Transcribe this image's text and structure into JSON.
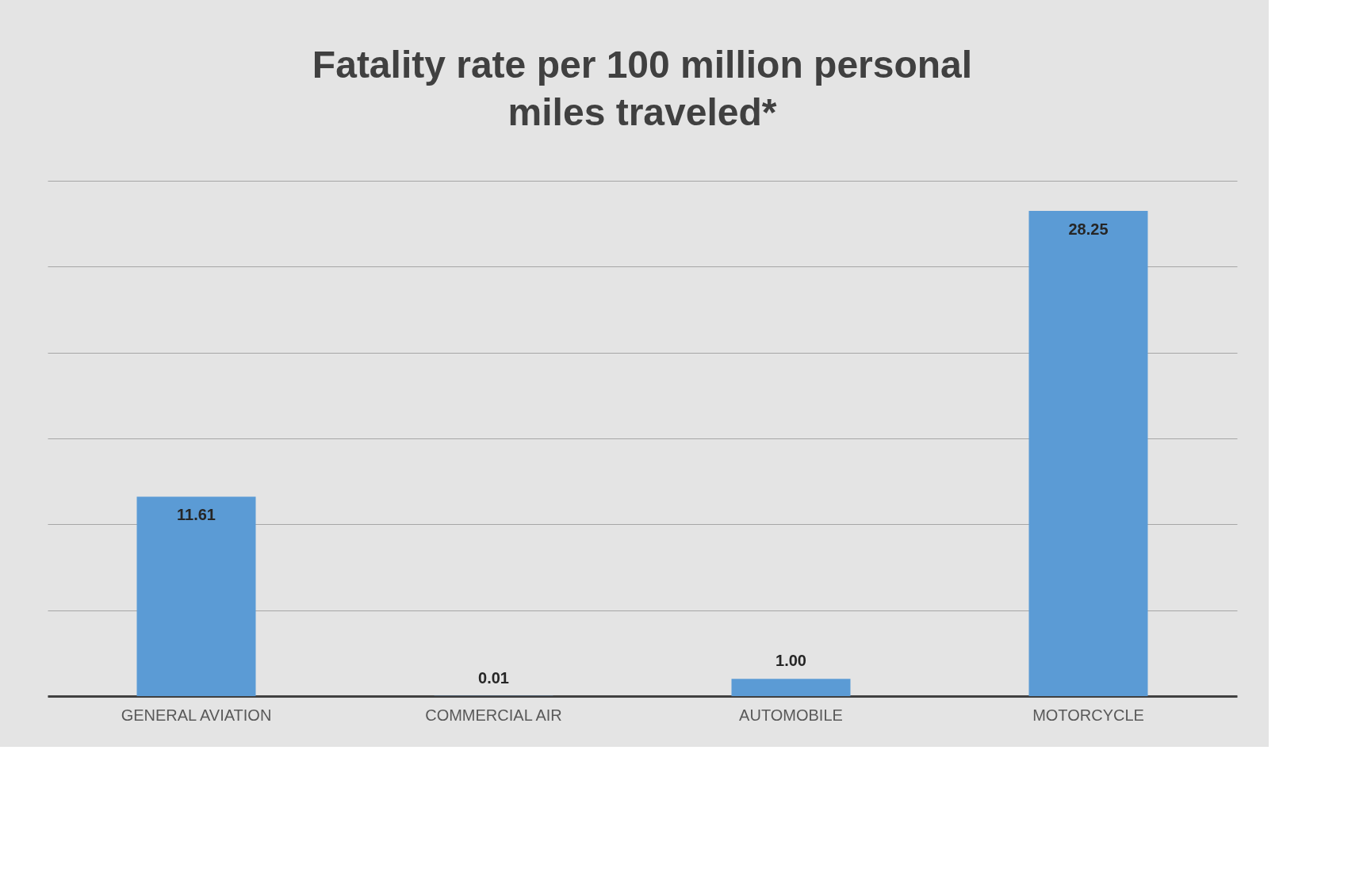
{
  "chart_data": {
    "type": "bar",
    "title": "Fatality rate per 100 million personal miles traveled*",
    "categories": [
      "GENERAL AVIATION",
      "COMMERCIAL AIR",
      "AUTOMOBILE",
      "MOTORCYCLE"
    ],
    "values": [
      11.61,
      0.01,
      1.0,
      28.25
    ],
    "value_labels": [
      "11.61",
      "0.01",
      "1.00",
      "28.25"
    ],
    "color": "#5b9bd5",
    "ylim": [
      0,
      30
    ],
    "yticks": [
      {
        "value": 0,
        "label": null
      },
      {
        "value": 5,
        "label": null
      },
      {
        "value": 10,
        "label": null
      },
      {
        "value": 15,
        "label": null
      },
      {
        "value": 20,
        "label": null
      },
      {
        "value": 25,
        "label": null
      },
      {
        "value": 30,
        "label": null
      }
    ],
    "grid": "y",
    "tick_labels": "x"
  }
}
